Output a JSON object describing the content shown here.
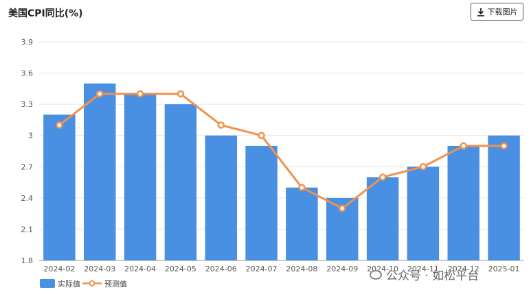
{
  "title": "美国CPI同比(%)",
  "download_label": "下载图片",
  "footer": "公众号 · 如松平台",
  "colors": {
    "bar": "#4a90e2",
    "line": "#f0924a",
    "grid": "#e6e6e6",
    "axis": "#999999"
  },
  "chart_data": {
    "type": "bar",
    "categories": [
      "2024-02",
      "2024-03",
      "2024-04",
      "2024-05",
      "2024-06",
      "2024-07",
      "2024-08",
      "2024-09",
      "2024-10",
      "2024-11",
      "2024-12",
      "2025-01"
    ],
    "series": [
      {
        "name": "实际值",
        "type": "bar",
        "values": [
          3.2,
          3.5,
          3.4,
          3.3,
          3.0,
          2.9,
          2.5,
          2.4,
          2.6,
          2.7,
          2.9,
          3.0
        ]
      },
      {
        "name": "预测值",
        "type": "line",
        "values": [
          3.1,
          3.4,
          3.4,
          3.4,
          3.1,
          3.0,
          2.5,
          2.3,
          2.6,
          2.7,
          2.9,
          2.9
        ]
      }
    ],
    "ylim": [
      1.8,
      3.9
    ],
    "yticks": [
      "1.8",
      "2.1",
      "2.4",
      "2.7",
      "3",
      "3.3",
      "3.6",
      "3.9"
    ],
    "grid": true,
    "legend_position": "bottom-left"
  }
}
